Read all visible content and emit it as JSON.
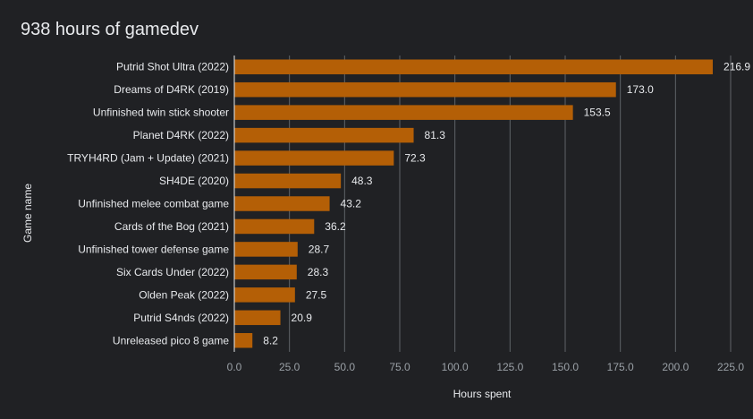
{
  "chart_data": {
    "type": "bar",
    "orientation": "horizontal",
    "title": "938 hours of gamedev",
    "xlabel": "Hours spent",
    "ylabel": "Game name",
    "xlim": [
      0,
      225
    ],
    "xticks": [
      "0.0",
      "25.0",
      "50.0",
      "75.0",
      "100.0",
      "125.0",
      "150.0",
      "175.0",
      "200.0",
      "225.0"
    ],
    "grid": true,
    "legend": "none",
    "bar_color": "#b45f06",
    "categories": [
      "Putrid Shot Ultra (2022)",
      "Dreams of D4RK (2019)",
      "Unfinished twin stick shooter",
      "Planet D4RK (2022)",
      "TRYH4RD (Jam + Update) (2021)",
      "SH4DE (2020)",
      "Unfinished melee combat game",
      "Cards of the Bog (2021)",
      "Unfinished tower defense game",
      "Six Cards Under (2022)",
      "Olden Peak (2022)",
      "Putrid S4nds (2022)",
      "Unreleased pico 8 game"
    ],
    "values": [
      216.9,
      173.0,
      153.5,
      81.3,
      72.3,
      48.3,
      43.2,
      36.2,
      28.7,
      28.3,
      27.5,
      20.9,
      8.2
    ],
    "value_labels": [
      "216.9",
      "173.0",
      "153.5",
      "81.3",
      "72.3",
      "48.3",
      "43.2",
      "36.2",
      "28.7",
      "28.3",
      "27.5",
      "20.9",
      "8.2"
    ]
  }
}
